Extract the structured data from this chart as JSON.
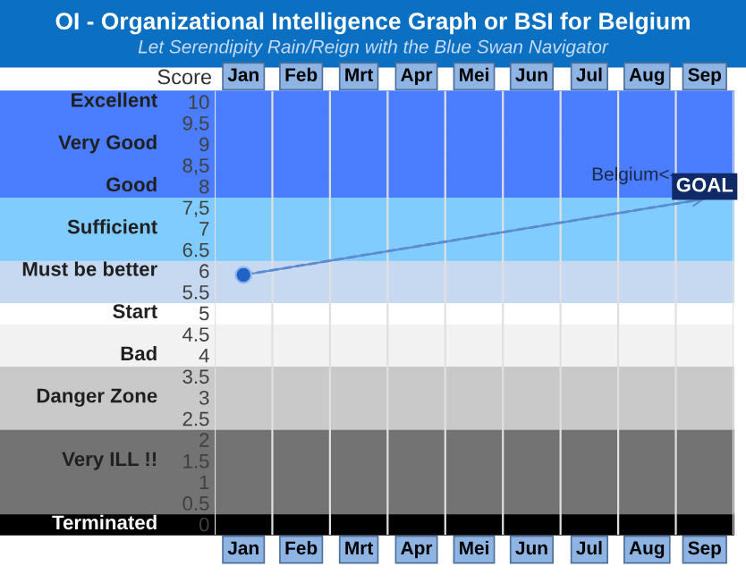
{
  "chart_data": {
    "type": "scatter",
    "title": "OI - Organizational Intelligence Graph or BSI for Belgium",
    "subtitle": "Let Serendipity Rain/Reign with the Blue Swan Navigator",
    "ylabel": "Score",
    "categories": [
      "Jan",
      "Feb",
      "Mrt",
      "Apr",
      "Mei",
      "Jun",
      "Jul",
      "Aug",
      "Sep"
    ],
    "series": [
      {
        "type": "line",
        "color": "#5b8bd0",
        "line_style": "dashed",
        "values": [
          5.9,
          null,
          null,
          null,
          null,
          null,
          null,
          null,
          7.7
        ]
      },
      {
        "color": "#1f63c6",
        "marker": "circle",
        "values": [
          5.9,
          null,
          null,
          null,
          null,
          null,
          null,
          null,
          null
        ]
      }
    ],
    "ylim": [
      -0.25,
      10.25
    ],
    "yticks": [
      0,
      0.5,
      1,
      1.5,
      2,
      2.5,
      3,
      3.5,
      4,
      {
        "value": 4.5,
        "label": "4.5"
      },
      5,
      {
        "value": 5.5,
        "label": "5.5"
      },
      6,
      {
        "value": 6.5,
        "label": "6.5"
      },
      7,
      {
        "value": 7.5,
        "label": "7,5"
      },
      8,
      {
        "value": 8.5,
        "label": "8,5"
      },
      9,
      {
        "value": 9.5,
        "label": "9.5"
      },
      10
    ],
    "bands": [
      {
        "axis": "y",
        "from": -0.25,
        "to": 0.25,
        "color": "#000000",
        "label": "Terminated"
      },
      {
        "axis": "y",
        "from": 0.25,
        "to": 0.75,
        "color": "#737373"
      },
      {
        "axis": "y",
        "from": 0.75,
        "to": 2.25,
        "color": "#737373",
        "label": "Very ILL !!"
      },
      {
        "axis": "y",
        "from": 2.25,
        "to": 3.75,
        "color": "#c9c9c9",
        "label": "Danger Zone"
      },
      {
        "axis": "y",
        "from": 3.75,
        "to": 4.25,
        "color": "#f2f2f2",
        "label": "Bad"
      },
      {
        "axis": "y",
        "from": 4.25,
        "to": 4.75,
        "color": "#f2f2f2"
      },
      {
        "axis": "y",
        "from": 4.75,
        "to": 5.25,
        "color": "#ffffff",
        "label": "Start"
      },
      {
        "axis": "y",
        "from": 5.25,
        "to": 5.75,
        "color": "#c6d9f1"
      },
      {
        "axis": "y",
        "from": 5.75,
        "to": 6.25,
        "color": "#c6d9f1",
        "label": "Must be better"
      },
      {
        "axis": "y",
        "from": 6.25,
        "to": 7.75,
        "color": "#80ccff",
        "label": "Sufficient"
      },
      {
        "axis": "y",
        "from": 7.75,
        "to": 8.25,
        "color": "#4a7dff",
        "label": "Good"
      },
      {
        "axis": "y",
        "from": 8.25,
        "to": 8.75,
        "color": "#4a7dff"
      },
      {
        "axis": "y",
        "from": 8.75,
        "to": 9.25,
        "color": "#4a7dff",
        "label": "Very Good"
      },
      {
        "axis": "y",
        "from": 9.25,
        "to": 9.75,
        "color": "#4a7dff"
      },
      {
        "axis": "y",
        "from": 9.75,
        "to": 10.25,
        "color": "#4a7dff",
        "label": "Excellent"
      }
    ],
    "annotations": [
      "Belgium<-",
      "GOAL"
    ],
    "grid": "x",
    "legend": false
  }
}
